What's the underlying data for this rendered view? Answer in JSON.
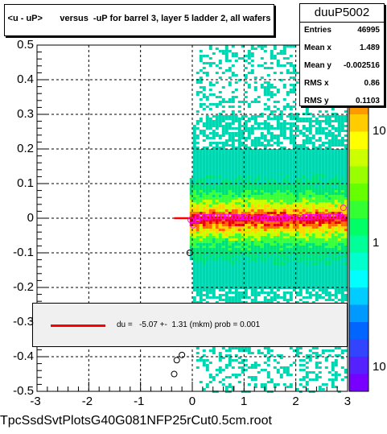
{
  "title": "<u - uP>       versus  -uP for barrel 3, layer 5 ladder 2, all wafers",
  "stats": {
    "name": "duuP5002",
    "rows": [
      {
        "label": "Entries",
        "value": "46995"
      },
      {
        "label": "Mean x",
        "value": "1.489"
      },
      {
        "label": "Mean y",
        "value": "-0.002516"
      },
      {
        "label": "RMS x",
        "value": "0.86"
      },
      {
        "label": "RMS y",
        "value": "0.1103"
      }
    ]
  },
  "fit": {
    "text": "du =   -5.07 +-  1.31 (mkm) prob = 0.001",
    "line_color": "#ff0000"
  },
  "filename": "TpcSsdSvtPlotsG40G081NFP25rCut0.5cm.root",
  "chart_data": {
    "type": "heatmap",
    "xlim": [
      -3,
      3
    ],
    "ylim": [
      -0.5,
      0.5
    ],
    "xticks": [
      "-3",
      "-2",
      "-1",
      "0",
      "1",
      "2",
      "3"
    ],
    "yticks": [
      "0.5",
      "0.4",
      "0.3",
      "0.2",
      "0.1",
      "0",
      "-0.1",
      "-0.2",
      "-0.3",
      "-0.4",
      "-0.5"
    ],
    "grid": true,
    "colorbar": {
      "scale": "log",
      "labels": [
        "10",
        "1",
        "10"
      ]
    },
    "fit_line": {
      "x": [
        -0.35,
        2.95
      ],
      "y": [
        0.0,
        0.0
      ]
    },
    "profile_points": [
      [
        -0.35,
        -0.45
      ],
      [
        -0.3,
        -0.41
      ],
      [
        -0.2,
        -0.395
      ],
      [
        -0.05,
        -0.1
      ],
      [
        -0.03,
        -0.005
      ],
      [
        0.02,
        -0.02
      ],
      [
        0.1,
        -0.005
      ],
      [
        0.3,
        0.003
      ],
      [
        0.6,
        0.005
      ],
      [
        1.0,
        0.003
      ],
      [
        1.4,
        0.002
      ],
      [
        1.8,
        0.003
      ],
      [
        2.2,
        0.004
      ],
      [
        2.6,
        0.005
      ],
      [
        2.85,
        0.01
      ],
      [
        2.92,
        0.03
      ]
    ]
  }
}
